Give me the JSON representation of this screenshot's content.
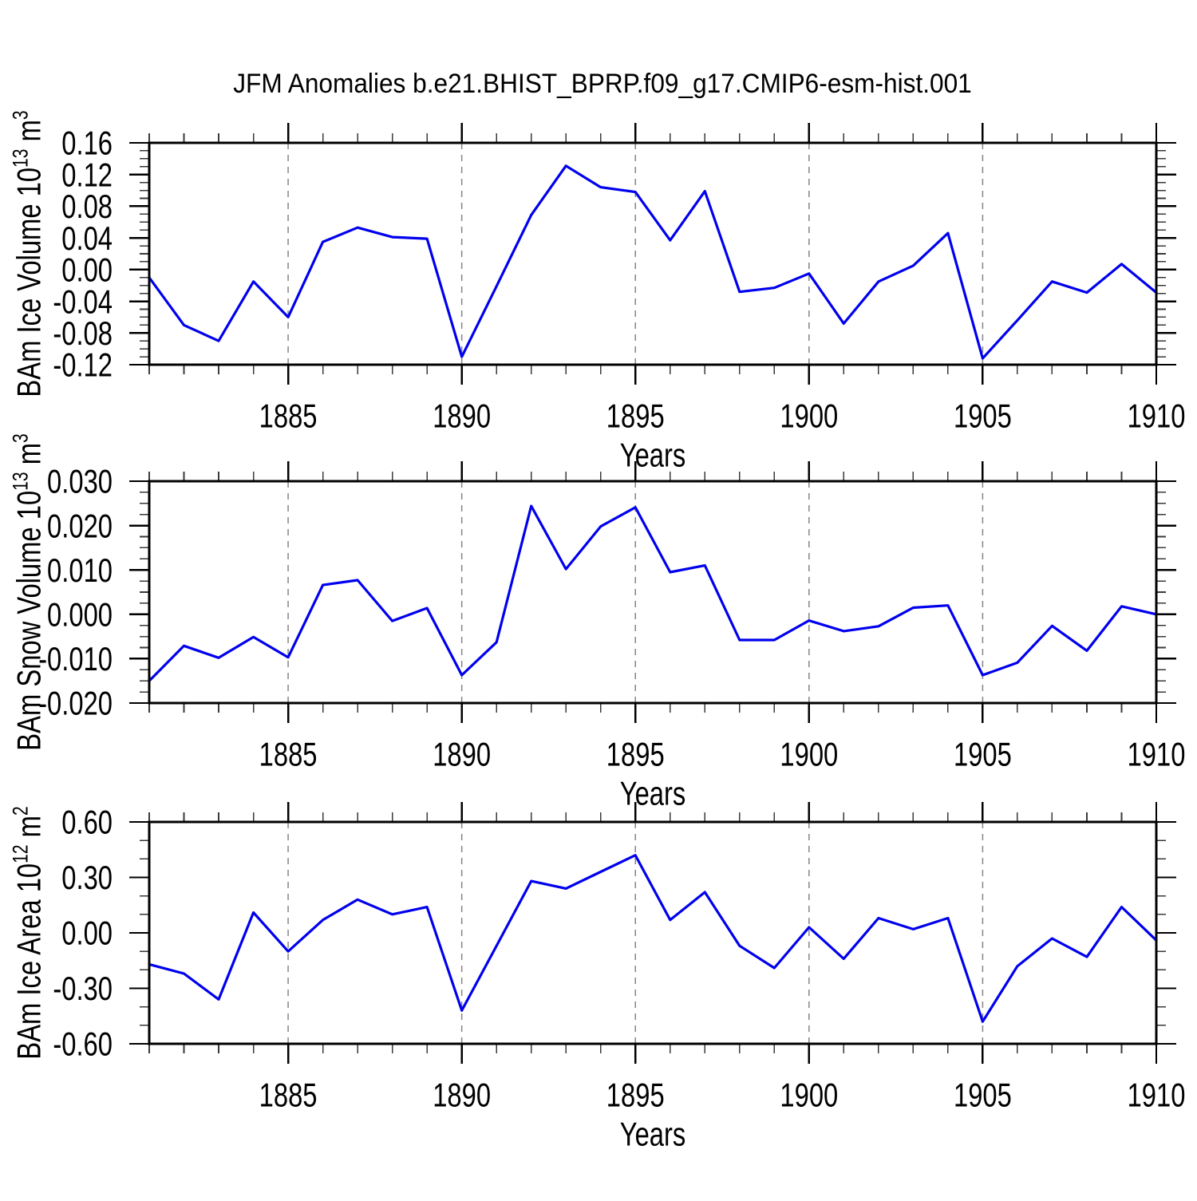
{
  "title": "JFM Anomalies b.e21.BHIST_BPRP.f09_g17.CMIP6-esm-hist.001",
  "line_color": "#0000ee",
  "grid_color": "#848484",
  "axis_color": "#000000",
  "chart_data": [
    {
      "type": "line",
      "name": "ice-volume",
      "ylabel": "BAm Ice Volume 10^13 m^3",
      "ylabel_parts": [
        {
          "text": "BAm Ice Volume 10"
        },
        {
          "text": "13",
          "sup": true
        },
        {
          "text": " m"
        },
        {
          "text": "3",
          "sup": true
        }
      ],
      "xlabel": "Years",
      "xlim": [
        1881,
        1910
      ],
      "ylim": [
        -0.12,
        0.16
      ],
      "x": [
        1881,
        1882,
        1883,
        1884,
        1885,
        1886,
        1887,
        1888,
        1889,
        1890,
        1891,
        1892,
        1893,
        1894,
        1895,
        1896,
        1897,
        1898,
        1899,
        1900,
        1901,
        1902,
        1903,
        1904,
        1905,
        1906,
        1907,
        1908,
        1909,
        1910
      ],
      "values": [
        -0.01,
        -0.07,
        -0.09,
        -0.015,
        -0.06,
        0.035,
        0.053,
        0.041,
        0.039,
        -0.11,
        -0.021,
        0.069,
        0.131,
        0.104,
        0.098,
        0.037,
        0.099,
        -0.028,
        -0.023,
        -0.005,
        -0.068,
        -0.015,
        0.005,
        0.046,
        -0.112,
        -0.064,
        -0.015,
        -0.029,
        0.007,
        -0.029
      ],
      "yticks": [
        {
          "value": 0.16,
          "label": "0.16"
        },
        {
          "value": 0.12,
          "label": "0.12"
        },
        {
          "value": 0.08,
          "label": "0.08"
        },
        {
          "value": 0.04,
          "label": "0.04"
        },
        {
          "value": 0.0,
          "label": "0.00"
        },
        {
          "value": -0.04,
          "label": "-0.04"
        },
        {
          "value": -0.08,
          "label": "-0.08"
        },
        {
          "value": -0.12,
          "label": "-0.12"
        }
      ],
      "ytick_minor_step": 0.01,
      "xticks": [
        {
          "value": 1885,
          "label": "1885"
        },
        {
          "value": 1890,
          "label": "1890"
        },
        {
          "value": 1895,
          "label": "1895"
        },
        {
          "value": 1900,
          "label": "1900"
        },
        {
          "value": 1905,
          "label": "1905"
        },
        {
          "value": 1910,
          "label": "1910"
        }
      ],
      "xtick_minor_step": 1,
      "grid_x": [
        1885,
        1890,
        1895,
        1900,
        1905
      ]
    },
    {
      "type": "line",
      "name": "snow-volume",
      "ylabel": "BAm Snow Volume 10^13 m^3",
      "ylabel_parts": [
        {
          "text": "BAm Snow Volume 10"
        },
        {
          "text": "13",
          "sup": true
        },
        {
          "text": " m"
        },
        {
          "text": "3",
          "sup": true
        }
      ],
      "xlabel": "Years",
      "xlim": [
        1881,
        1910
      ],
      "ylim": [
        -0.02,
        0.03
      ],
      "x": [
        1881,
        1882,
        1883,
        1884,
        1885,
        1886,
        1887,
        1888,
        1889,
        1890,
        1891,
        1892,
        1893,
        1894,
        1895,
        1896,
        1897,
        1898,
        1899,
        1900,
        1901,
        1902,
        1903,
        1904,
        1905,
        1906,
        1907,
        1908,
        1909,
        1910
      ],
      "values": [
        -0.015,
        -0.0071,
        -0.0098,
        -0.0051,
        -0.0097,
        0.0066,
        0.0077,
        -0.0015,
        0.0014,
        -0.0137,
        -0.0063,
        0.0244,
        0.0102,
        0.0198,
        0.0241,
        0.0095,
        0.011,
        -0.0058,
        -0.0058,
        -0.0014,
        -0.0038,
        -0.0027,
        0.0015,
        0.002,
        -0.0137,
        -0.0109,
        -0.0026,
        -0.0082,
        0.0018,
        0.0
      ],
      "yticks": [
        {
          "value": 0.03,
          "label": "0.030"
        },
        {
          "value": 0.02,
          "label": "0.020"
        },
        {
          "value": 0.01,
          "label": "0.010"
        },
        {
          "value": 0.0,
          "label": "0.000"
        },
        {
          "value": -0.01,
          "label": "-0.010"
        },
        {
          "value": -0.02,
          "label": "-0.020"
        }
      ],
      "ytick_minor_step": 0.0025,
      "xticks": [
        {
          "value": 1885,
          "label": "1885"
        },
        {
          "value": 1890,
          "label": "1890"
        },
        {
          "value": 1895,
          "label": "1895"
        },
        {
          "value": 1900,
          "label": "1900"
        },
        {
          "value": 1905,
          "label": "1905"
        },
        {
          "value": 1910,
          "label": "1910"
        }
      ],
      "xtick_minor_step": 1,
      "grid_x": [
        1885,
        1890,
        1895,
        1900,
        1905
      ]
    },
    {
      "type": "line",
      "name": "ice-area",
      "ylabel": "BAm Ice Area 10^12 m^2",
      "ylabel_parts": [
        {
          "text": "BAm Ice Area 10"
        },
        {
          "text": "12",
          "sup": true
        },
        {
          "text": " m"
        },
        {
          "text": "2",
          "sup": true
        }
      ],
      "xlabel": "Years",
      "xlim": [
        1881,
        1910
      ],
      "ylim": [
        -0.6,
        0.6
      ],
      "x": [
        1881,
        1882,
        1883,
        1884,
        1885,
        1886,
        1887,
        1888,
        1889,
        1890,
        1891,
        1892,
        1893,
        1894,
        1895,
        1896,
        1897,
        1898,
        1899,
        1900,
        1901,
        1902,
        1903,
        1904,
        1905,
        1906,
        1907,
        1908,
        1909,
        1910
      ],
      "values": [
        -0.17,
        -0.22,
        -0.36,
        0.11,
        -0.1,
        0.07,
        0.18,
        0.1,
        0.14,
        -0.42,
        -0.07,
        0.28,
        0.24,
        0.33,
        0.42,
        0.07,
        0.22,
        -0.07,
        -0.19,
        0.03,
        -0.14,
        0.08,
        0.02,
        0.08,
        -0.48,
        -0.18,
        -0.03,
        -0.13,
        0.14,
        -0.04
      ],
      "yticks": [
        {
          "value": 0.6,
          "label": "0.60"
        },
        {
          "value": 0.3,
          "label": "0.30"
        },
        {
          "value": 0.0,
          "label": "0.00"
        },
        {
          "value": -0.3,
          "label": "-0.30"
        },
        {
          "value": -0.6,
          "label": "-0.60"
        }
      ],
      "ytick_minor_step": 0.1,
      "xticks": [
        {
          "value": 1885,
          "label": "1885"
        },
        {
          "value": 1890,
          "label": "1890"
        },
        {
          "value": 1895,
          "label": "1895"
        },
        {
          "value": 1900,
          "label": "1900"
        },
        {
          "value": 1905,
          "label": "1905"
        },
        {
          "value": 1910,
          "label": "1910"
        }
      ],
      "xtick_minor_step": 1,
      "grid_x": [
        1885,
        1890,
        1895,
        1900,
        1905
      ]
    }
  ]
}
